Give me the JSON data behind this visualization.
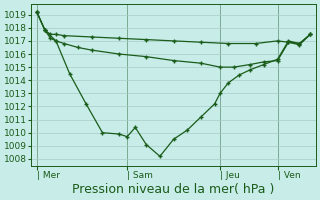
{
  "background_color": "#c8ece8",
  "grid_color": "#a8ccc8",
  "line_color": "#1a5c1a",
  "ylim": [
    1007.5,
    1019.8
  ],
  "yticks": [
    1008,
    1009,
    1010,
    1011,
    1012,
    1013,
    1014,
    1015,
    1016,
    1017,
    1018,
    1019
  ],
  "xlabel": "Pression niveau de la mer( hPa )",
  "xlabel_fontsize": 9,
  "tick_fontsize": 6.5,
  "day_labels": [
    "| Mer",
    "| Sam",
    "| Jeu",
    "| Ven"
  ],
  "day_positions": [
    0.0,
    0.33,
    0.67,
    0.88
  ],
  "vline_positions": [
    0.0,
    0.33,
    0.67,
    0.88
  ],
  "series_flat_x": [
    0.0,
    0.03,
    0.05,
    0.07,
    0.1,
    0.2,
    0.3,
    0.4,
    0.5,
    0.6,
    0.7,
    0.8,
    0.88,
    0.92,
    0.96,
    1.0
  ],
  "series_flat_y": [
    1019.2,
    1017.8,
    1017.5,
    1017.5,
    1017.4,
    1017.3,
    1017.2,
    1017.1,
    1017.0,
    1016.9,
    1016.8,
    1016.8,
    1017.0,
    1016.9,
    1016.8,
    1017.5
  ],
  "series_mid_x": [
    0.0,
    0.03,
    0.05,
    0.07,
    0.1,
    0.15,
    0.2,
    0.3,
    0.4,
    0.5,
    0.6,
    0.67,
    0.72,
    0.78,
    0.83,
    0.88,
    0.92,
    0.96,
    1.0
  ],
  "series_mid_y": [
    1019.2,
    1017.8,
    1017.2,
    1017.0,
    1016.8,
    1016.5,
    1016.3,
    1016.0,
    1015.8,
    1015.5,
    1015.3,
    1015.0,
    1015.0,
    1015.2,
    1015.4,
    1015.5,
    1016.9,
    1016.7,
    1017.5
  ],
  "series_deep_x": [
    0.0,
    0.03,
    0.07,
    0.12,
    0.18,
    0.24,
    0.3,
    0.33,
    0.36,
    0.4,
    0.45,
    0.5,
    0.55,
    0.6,
    0.65,
    0.67,
    0.7,
    0.74,
    0.78,
    0.83,
    0.88,
    0.92,
    0.96,
    1.0
  ],
  "series_deep_y": [
    1019.2,
    1017.8,
    1017.0,
    1014.5,
    1012.2,
    1010.0,
    1009.9,
    1009.7,
    1010.4,
    1009.1,
    1008.2,
    1009.5,
    1010.2,
    1011.2,
    1012.2,
    1013.0,
    1013.8,
    1014.4,
    1014.8,
    1015.2,
    1015.6,
    1017.0,
    1016.8,
    1017.5
  ],
  "xlim": [
    -0.02,
    1.02
  ]
}
